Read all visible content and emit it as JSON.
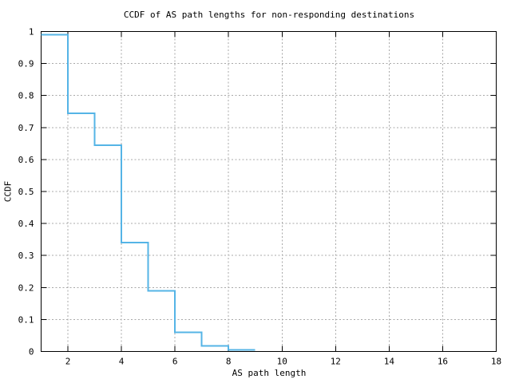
{
  "window": {
    "background": "#ffffff"
  },
  "chart_data": {
    "type": "line",
    "subtype": "step-ccdf",
    "title": "CCDF of AS path lengths for non-responding destinations",
    "xlabel": "AS path length",
    "ylabel": "CCDF",
    "xlim": [
      1,
      18
    ],
    "ylim": [
      0,
      1
    ],
    "xticks": [
      2,
      4,
      6,
      8,
      10,
      12,
      14,
      16,
      18
    ],
    "xtick_labels": [
      "2",
      "4",
      "6",
      "8",
      "10",
      "12",
      "14",
      "16",
      "18"
    ],
    "yticks": [
      0,
      0.1,
      0.2,
      0.3,
      0.4,
      0.5,
      0.6,
      0.7,
      0.8,
      0.9,
      1
    ],
    "ytick_labels": [
      "0",
      "0.1",
      "0.2",
      "0.3",
      "0.4",
      "0.5",
      "0.6",
      "0.7",
      "0.8",
      "0.9",
      "1"
    ],
    "grid": true,
    "grid_style": "dashed",
    "legend": "none",
    "series": [
      {
        "name": "CCDF of AS path length",
        "color": "#55b4e6",
        "points": [
          [
            1,
            0.99
          ],
          [
            2,
            0.745
          ],
          [
            3,
            0.645
          ],
          [
            4,
            0.34
          ],
          [
            5,
            0.19
          ],
          [
            6,
            0.06
          ],
          [
            7,
            0.017
          ],
          [
            8,
            0.005
          ],
          [
            9,
            0.005
          ]
        ]
      }
    ],
    "colors": {
      "axis": "#000000",
      "grid": "#a8a8a8",
      "background": "#ffffff",
      "text": "#000000"
    }
  }
}
